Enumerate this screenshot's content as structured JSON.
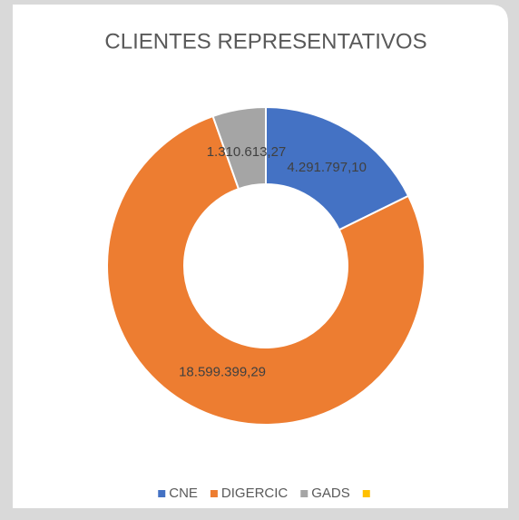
{
  "chart_data": {
    "type": "donut",
    "title": "CLIENTES REPRESENTATIVOS",
    "categories": [
      "CNE",
      "DIGERCIC",
      "GADS",
      null
    ],
    "values": [
      4291797.1,
      18599399.29,
      1310613.27,
      0
    ],
    "value_labels": [
      "4.291.797,10",
      "18.599.399,29",
      "1.310.613,27",
      null
    ],
    "colors": [
      "#4472c4",
      "#ed7d31",
      "#a5a5a5",
      "#ffc000"
    ],
    "legend": "bottom"
  }
}
